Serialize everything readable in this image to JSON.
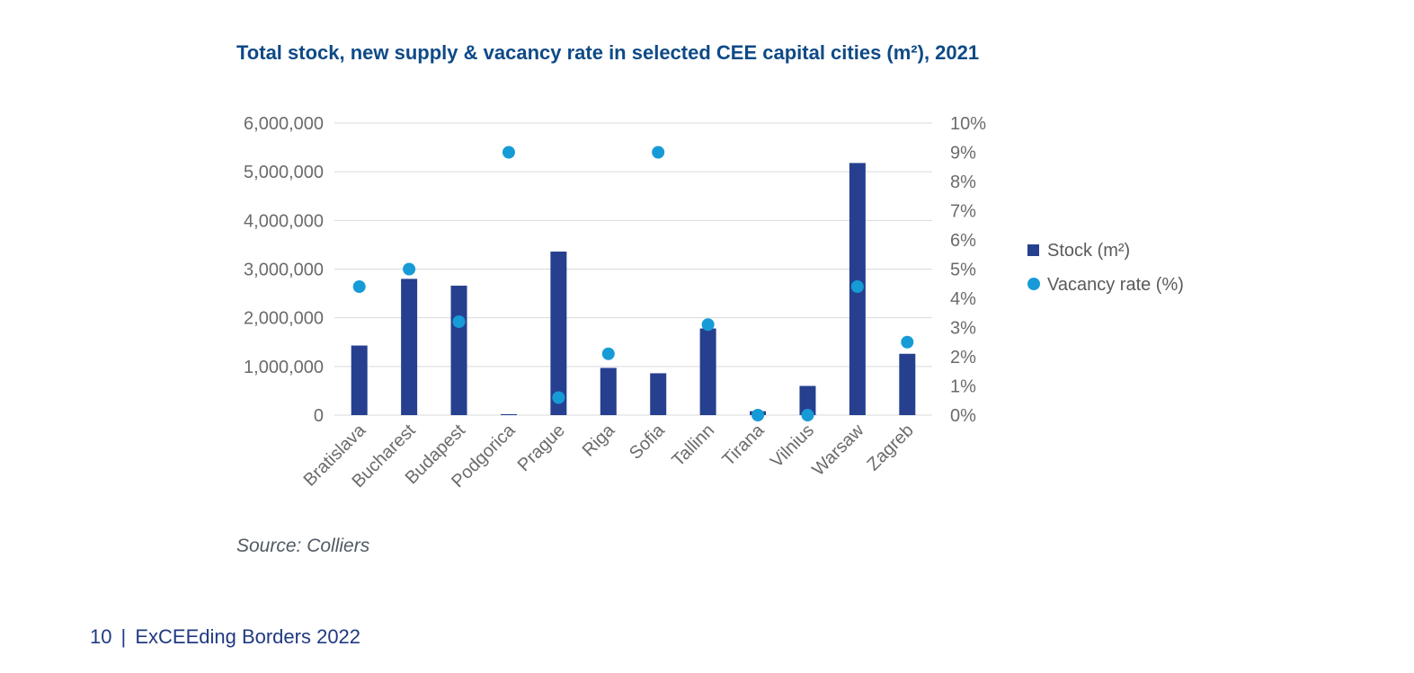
{
  "title": "Total stock, new supply & vacancy rate in selected CEE capital cities (m²), 2021",
  "source": "Source: Colliers",
  "footer": {
    "page_number": "10",
    "separator": "|",
    "publication": "ExCEEding Borders 2022"
  },
  "colors": {
    "bar": "#26408f",
    "dot": "#169bd7",
    "grid": "#d9d9d9",
    "title": "#0e4a87"
  },
  "chart_data": {
    "type": "bar",
    "categories": [
      "Bratislava",
      "Bucharest",
      "Budapest",
      "Podgorica",
      "Prague",
      "Riga",
      "Sofia",
      "Tallinn",
      "Tirana",
      "Vilnius",
      "Warsaw",
      "Zagreb"
    ],
    "series": [
      {
        "name": "Stock (m²)",
        "type": "bar",
        "axis": "left",
        "values": [
          1430000,
          2800000,
          2660000,
          20000,
          3360000,
          970000,
          860000,
          1780000,
          80000,
          600000,
          5180000,
          1260000
        ]
      },
      {
        "name": "Vacancy rate (%)",
        "type": "scatter",
        "axis": "right",
        "values": [
          4.4,
          5.0,
          3.2,
          9.0,
          0.6,
          2.1,
          9.0,
          3.1,
          0.0,
          0.0,
          4.4,
          2.5
        ]
      }
    ],
    "y_left": {
      "min": 0,
      "max": 6000000,
      "ticks": [
        0,
        1000000,
        2000000,
        3000000,
        4000000,
        5000000,
        6000000
      ],
      "tick_labels": [
        "0",
        "1,000,000",
        "2,000,000",
        "3,000,000",
        "4,000,000",
        "5,000,000",
        "6,000,000"
      ]
    },
    "y_right": {
      "min": 0,
      "max": 10,
      "ticks": [
        0,
        1,
        2,
        3,
        4,
        5,
        6,
        7,
        8,
        9,
        10
      ],
      "tick_labels": [
        "0%",
        "1%",
        "2%",
        "3%",
        "4%",
        "5%",
        "6%",
        "7%",
        "8%",
        "9%",
        "10%"
      ]
    },
    "grid": true,
    "legend_position": "right"
  }
}
